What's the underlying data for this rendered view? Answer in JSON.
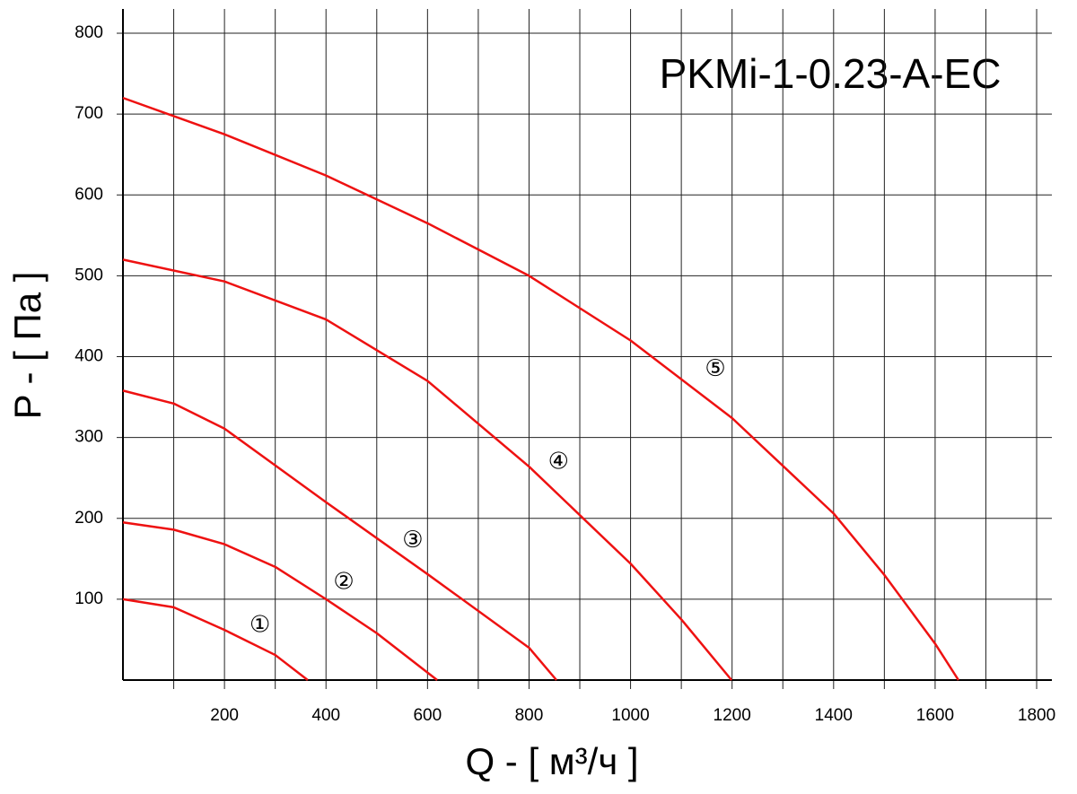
{
  "chart_data": {
    "type": "line",
    "title": "PKMi-1-0.23-A-EC",
    "x_label": "Q - [ м³/ч ]",
    "y_label": "P - [ Па ]",
    "xlim": [
      0,
      1830
    ],
    "ylim": [
      0,
      830
    ],
    "xticks": [
      200,
      400,
      600,
      800,
      1000,
      1200,
      1400,
      1600,
      1800
    ],
    "xminor_ticks": [
      100,
      300,
      500,
      700,
      900,
      1100,
      1300,
      1500,
      1700
    ],
    "yticks": [
      100,
      200,
      300,
      400,
      500,
      600,
      700,
      800
    ],
    "grid": true,
    "series": [
      {
        "color": "#ee1111",
        "x": [
          0,
          100,
          200,
          300,
          364
        ],
        "values": [
          100,
          90,
          62,
          31,
          0
        ]
      },
      {
        "color": "#ee1111",
        "x": [
          0,
          100,
          200,
          300,
          400,
          500,
          619
        ],
        "values": [
          195,
          186,
          168,
          140,
          100,
          58,
          0
        ]
      },
      {
        "color": "#ee1111",
        "x": [
          0,
          100,
          200,
          400,
          600,
          800,
          854
        ],
        "values": [
          358,
          342,
          311,
          220,
          131,
          40,
          0
        ]
      },
      {
        "color": "#ee1111",
        "x": [
          0,
          200,
          400,
          600,
          800,
          1000,
          1100,
          1199
        ],
        "values": [
          520,
          493,
          446,
          370,
          264,
          144,
          75,
          0
        ]
      },
      {
        "color": "#ee1111",
        "x": [
          0,
          200,
          400,
          600,
          800,
          1000,
          1200,
          1400,
          1500,
          1600,
          1646
        ],
        "values": [
          720,
          675,
          624,
          565,
          500,
          420,
          324,
          206,
          130,
          45,
          0
        ]
      }
    ],
    "annotations": [
      {
        "text": "①",
        "x": 270,
        "y": 67,
        "color": "#00dd00"
      },
      {
        "text": "②",
        "x": 435,
        "y": 120,
        "color": "#00dd00"
      },
      {
        "text": "③",
        "x": 571,
        "y": 172,
        "color": "#00dd00"
      },
      {
        "text": "④",
        "x": 858,
        "y": 269,
        "color": "#00dd00"
      },
      {
        "text": "⑤",
        "x": 1167,
        "y": 384,
        "color": "#00dd00"
      }
    ]
  }
}
